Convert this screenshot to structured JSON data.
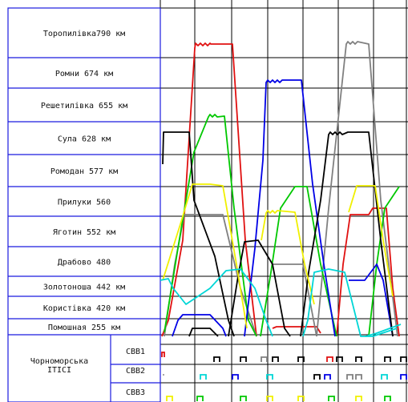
{
  "chart_data": {
    "type": "diagram",
    "stations": [
      "Торопилівка790 км",
      "Ромни 674 км",
      "Решетилівка 655 км",
      "Сула 628 км",
      "Ромодан 577 км",
      "Прилуки 560",
      "Яготин 552 км",
      "Драбово 480",
      "Золотоноша 442 км",
      "Користівка 420 км",
      "Помошная 255 км"
    ],
    "group_label": [
      "Чорноморська",
      "ІТІСІ"
    ],
    "sub_rows": [
      "СВВ1",
      "СВВ2",
      "СВВ3"
    ],
    "colors": {
      "grid": "#000000",
      "frame": "#1a1adf",
      "red": "#e01010",
      "green": "#00c800",
      "blue": "#0000e6",
      "black": "#000000",
      "gray": "#808080",
      "yellow": "#f0f000",
      "cyan": "#00d6d6"
    }
  }
}
